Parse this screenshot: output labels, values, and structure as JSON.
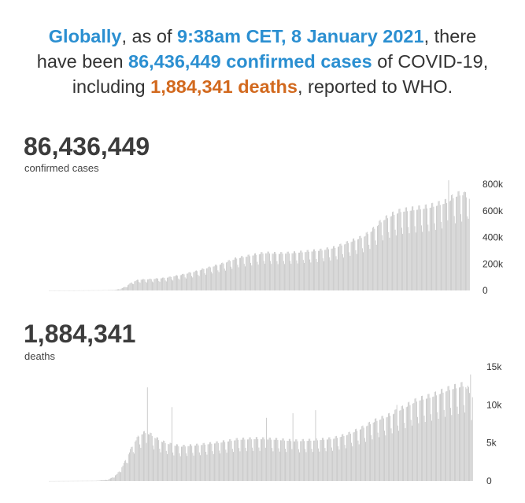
{
  "headline": {
    "w1": "Globally",
    "t1": ", as of ",
    "w2": "9:38am CET, 8 January 2021",
    "t2": ", there",
    "t3": "have been ",
    "w3": "86,436,449 confirmed cases",
    "t4": " of COVID-19,",
    "t5": "including ",
    "w4": "1,884,341 deaths",
    "t6": ", reported to WHO."
  },
  "colors": {
    "blue": "#2b8fd1",
    "orange": "#d2691e",
    "bar": "#c4c4c4"
  },
  "chart_data": [
    {
      "type": "bar",
      "title": "86,436,449",
      "subtitle": "confirmed cases",
      "ylim": [
        0,
        800000
      ],
      "yticks": [
        0,
        200000,
        400000,
        600000,
        800000
      ],
      "ytick_labels": [
        "0",
        "200k",
        "400k",
        "600k",
        "800k"
      ],
      "anchors": [
        [
          0,
          100
        ],
        [
          30,
          400
        ],
        [
          55,
          1500
        ],
        [
          70,
          4000
        ],
        [
          76,
          12000
        ],
        [
          82,
          30000
        ],
        [
          88,
          60000
        ],
        [
          95,
          80000
        ],
        [
          110,
          85000
        ],
        [
          125,
          95000
        ],
        [
          140,
          115000
        ],
        [
          155,
          140000
        ],
        [
          170,
          170000
        ],
        [
          185,
          200000
        ],
        [
          200,
          240000
        ],
        [
          215,
          260000
        ],
        [
          230,
          280000
        ],
        [
          245,
          275000
        ],
        [
          260,
          280000
        ],
        [
          275,
          290000
        ],
        [
          290,
          300000
        ],
        [
          305,
          320000
        ],
        [
          320,
          360000
        ],
        [
          335,
          400000
        ],
        [
          345,
          450000
        ],
        [
          355,
          520000
        ],
        [
          365,
          560000
        ],
        [
          375,
          590000
        ],
        [
          385,
          600000
        ],
        [
          395,
          610000
        ],
        [
          405,
          620000
        ],
        [
          415,
          640000
        ],
        [
          425,
          660000
        ],
        [
          432,
          700000
        ],
        [
          440,
          720000
        ],
        [
          448,
          690000
        ]
      ],
      "spikes": [
        [
          426,
          830000
        ],
        [
          442,
          740000
        ]
      ],
      "dips": [
        [
          447,
          540000
        ]
      ]
    },
    {
      "type": "bar",
      "title": "1,884,341",
      "subtitle": "deaths",
      "ylim": [
        0,
        15000
      ],
      "yticks": [
        0,
        5000,
        10000,
        15000
      ],
      "ytick_labels": [
        "0",
        "5k",
        "10k",
        "15k"
      ],
      "anchors": [
        [
          0,
          5
        ],
        [
          50,
          30
        ],
        [
          62,
          150
        ],
        [
          66,
          400
        ],
        [
          72,
          900
        ],
        [
          78,
          2000
        ],
        [
          84,
          3500
        ],
        [
          90,
          5000
        ],
        [
          96,
          6000
        ],
        [
          102,
          6300
        ],
        [
          108,
          6000
        ],
        [
          114,
          5500
        ],
        [
          120,
          5100
        ],
        [
          130,
          4700
        ],
        [
          140,
          4500
        ],
        [
          160,
          4700
        ],
        [
          180,
          5000
        ],
        [
          200,
          5400
        ],
        [
          220,
          5500
        ],
        [
          240,
          5400
        ],
        [
          260,
          5200
        ],
        [
          280,
          5300
        ],
        [
          300,
          5500
        ],
        [
          315,
          6000
        ],
        [
          330,
          6800
        ],
        [
          345,
          7800
        ],
        [
          360,
          8500
        ],
        [
          375,
          9500
        ],
        [
          390,
          10500
        ],
        [
          405,
          11000
        ],
        [
          415,
          11500
        ],
        [
          425,
          12000
        ],
        [
          432,
          12200
        ],
        [
          440,
          12500
        ],
        [
          448,
          11000
        ]
      ],
      "spikes": [
        [
          104,
          12300
        ],
        [
          130,
          9700
        ],
        [
          230,
          8300
        ],
        [
          258,
          8900
        ],
        [
          282,
          9300
        ],
        [
          368,
          10000
        ],
        [
          446,
          14000
        ]
      ],
      "dips": [
        [
          447,
          8000
        ]
      ]
    }
  ]
}
